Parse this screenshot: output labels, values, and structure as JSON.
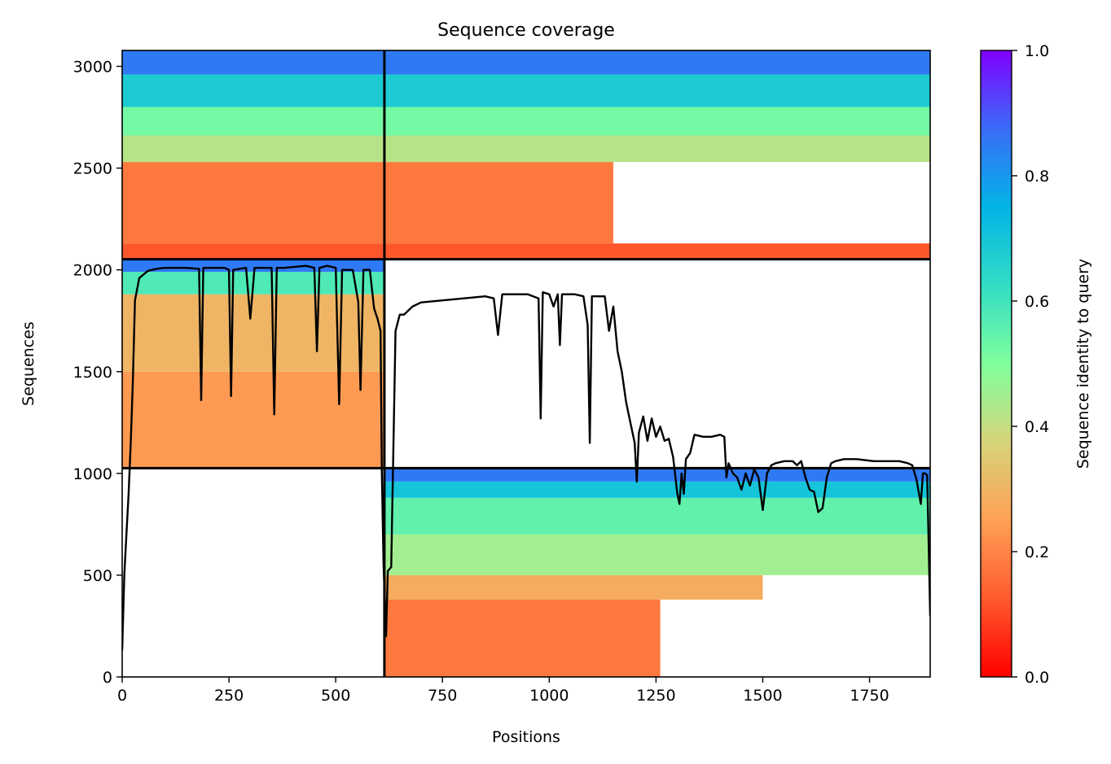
{
  "chart_data": {
    "type": "heatmap",
    "title": "Sequence coverage",
    "xlabel": "Positions",
    "ylabel": "Sequences",
    "xlim": [
      0,
      1892
    ],
    "ylim": [
      0,
      3078
    ],
    "x_ticks": [
      0,
      250,
      500,
      750,
      1000,
      1250,
      1500,
      1750
    ],
    "y_ticks": [
      0,
      500,
      1000,
      1500,
      2000,
      2500,
      3000
    ],
    "colorbar": {
      "label": "Sequence identity to query",
      "range": [
        0.0,
        1.0
      ],
      "ticks": [
        "0.0",
        "0.2",
        "0.4",
        "0.6",
        "0.8",
        "1.0"
      ],
      "colormap": "rainbow_r"
    },
    "chain_boundaries": {
      "x": [
        614
      ],
      "y": [
        1026,
        2052
      ]
    },
    "blocks": [
      {
        "name": "top",
        "x_range": [
          0,
          1892
        ],
        "y_range": [
          2052,
          3078
        ],
        "identity_bands": [
          {
            "y": [
              2052,
              2130
            ],
            "id": 0.12
          },
          {
            "y": [
              2130,
              2530
            ],
            "id": 0.18
          },
          {
            "y": [
              2530,
              2660
            ],
            "id": 0.42
          },
          {
            "y": [
              2660,
              2800
            ],
            "id": 0.52
          },
          {
            "y": [
              2800,
              2960
            ],
            "id": 0.68
          },
          {
            "y": [
              2960,
              3078
            ],
            "id": 0.85
          }
        ],
        "coverage_cutoffs": [
          {
            "y": [
              2052,
              2130
            ],
            "x_end": 1892
          },
          {
            "y": [
              2130,
              2530
            ],
            "x_end": 1150
          },
          {
            "y": [
              2530,
              2680
            ],
            "x_end": 1892
          },
          {
            "y": [
              2680,
              3078
            ],
            "x_end": 1892
          }
        ]
      },
      {
        "name": "middle",
        "x_range": [
          0,
          614
        ],
        "y_range": [
          1026,
          2052
        ],
        "identity_bands": [
          {
            "y": [
              1026,
              1500
            ],
            "id": 0.24
          },
          {
            "y": [
              1500,
              1880
            ],
            "id": 0.3
          },
          {
            "y": [
              1880,
              1990
            ],
            "id": 0.58
          },
          {
            "y": [
              1990,
              2052
            ],
            "id": 0.85
          }
        ]
      },
      {
        "name": "bottom",
        "x_range": [
          614,
          1892
        ],
        "y_range": [
          0,
          1026
        ],
        "identity_bands": [
          {
            "y": [
              0,
              380
            ],
            "id": 0.18
          },
          {
            "y": [
              380,
              500
            ],
            "id": 0.28
          },
          {
            "y": [
              500,
              700
            ],
            "id": 0.45
          },
          {
            "y": [
              700,
              880
            ],
            "id": 0.55
          },
          {
            "y": [
              880,
              960
            ],
            "id": 0.7
          },
          {
            "y": [
              960,
              1026
            ],
            "id": 0.85
          }
        ],
        "coverage_cutoffs": [
          {
            "y": [
              0,
              380
            ],
            "x_end": 1260
          },
          {
            "y": [
              380,
              480
            ],
            "x_end": 1500
          },
          {
            "y": [
              480,
              1026
            ],
            "x_end": 1892
          }
        ]
      }
    ],
    "coverage_line": {
      "x": [
        0,
        5,
        10,
        15,
        20,
        25,
        30,
        40,
        60,
        80,
        100,
        150,
        180,
        185,
        190,
        240,
        250,
        255,
        260,
        290,
        300,
        310,
        320,
        350,
        356,
        362,
        380,
        430,
        450,
        456,
        462,
        480,
        500,
        508,
        515,
        540,
        553,
        558,
        565,
        580,
        590,
        598,
        605,
        608,
        612,
        618,
        622,
        630,
        640,
        650,
        660,
        680,
        700,
        750,
        800,
        850,
        870,
        880,
        890,
        950,
        975,
        980,
        985,
        1000,
        1010,
        1020,
        1025,
        1030,
        1060,
        1080,
        1090,
        1095,
        1100,
        1130,
        1140,
        1150,
        1160,
        1170,
        1180,
        1190,
        1200,
        1205,
        1210,
        1220,
        1230,
        1240,
        1250,
        1260,
        1270,
        1280,
        1290,
        1300,
        1305,
        1310,
        1315,
        1320,
        1330,
        1340,
        1360,
        1380,
        1400,
        1410,
        1415,
        1420,
        1430,
        1440,
        1450,
        1460,
        1470,
        1480,
        1490,
        1500,
        1510,
        1520,
        1530,
        1550,
        1570,
        1580,
        1590,
        1600,
        1610,
        1620,
        1630,
        1640,
        1650,
        1660,
        1670,
        1690,
        1720,
        1760,
        1800,
        1820,
        1840,
        1850,
        1860,
        1870,
        1875,
        1880,
        1885,
        1888,
        1892
      ],
      "y": [
        130,
        500,
        700,
        900,
        1150,
        1450,
        1850,
        1960,
        1995,
        2005,
        2010,
        2010,
        2005,
        1360,
        2010,
        2010,
        2000,
        1380,
        2000,
        2010,
        1760,
        2010,
        2010,
        2010,
        1290,
        2010,
        2010,
        2020,
        2010,
        1600,
        2010,
        2020,
        2010,
        1340,
        2000,
        2000,
        1840,
        1410,
        2000,
        2000,
        1810,
        1760,
        1700,
        1000,
        550,
        200,
        520,
        540,
        1700,
        1780,
        1780,
        1820,
        1840,
        1850,
        1860,
        1870,
        1860,
        1680,
        1880,
        1880,
        1860,
        1270,
        1890,
        1880,
        1820,
        1880,
        1630,
        1880,
        1880,
        1870,
        1730,
        1150,
        1870,
        1870,
        1700,
        1820,
        1600,
        1500,
        1350,
        1250,
        1150,
        960,
        1200,
        1280,
        1160,
        1270,
        1180,
        1230,
        1160,
        1170,
        1080,
        900,
        850,
        1000,
        900,
        1070,
        1100,
        1190,
        1180,
        1180,
        1190,
        1180,
        980,
        1050,
        1000,
        980,
        920,
        1000,
        940,
        1020,
        980,
        820,
        1000,
        1040,
        1050,
        1060,
        1060,
        1040,
        1060,
        980,
        920,
        910,
        810,
        830,
        980,
        1050,
        1060,
        1070,
        1070,
        1060,
        1060,
        1060,
        1050,
        1040,
        970,
        850,
        1000,
        1000,
        990,
        700,
        300
      ]
    }
  }
}
